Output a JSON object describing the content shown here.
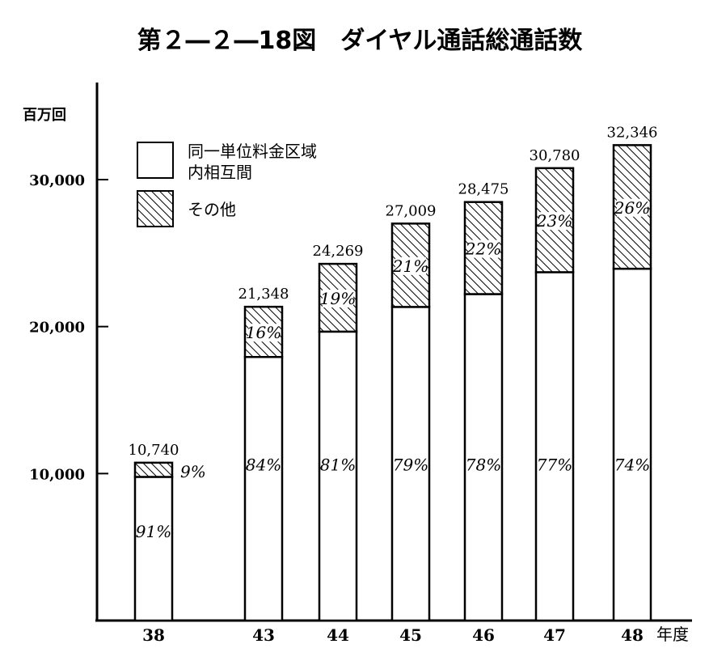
{
  "chart_data": {
    "type": "bar",
    "stacked": true,
    "title": "第２―２―18図　ダイヤル通話総通話数",
    "ylabel": "百万回",
    "xlabel": "年度",
    "ylim": [
      0,
      35000
    ],
    "yticks": [
      10000,
      20000,
      30000
    ],
    "ytick_labels": [
      "10,000",
      "20,000",
      "30,000"
    ],
    "categories": [
      "38",
      "43",
      "44",
      "45",
      "46",
      "47",
      "48"
    ],
    "totals": [
      10740,
      21348,
      24269,
      27009,
      28475,
      30780,
      32346
    ],
    "total_labels": [
      "10,740",
      "21,348",
      "24,269",
      "27,009",
      "28,475",
      "30,780",
      "32,346"
    ],
    "series": [
      {
        "name": "同一単位料金区域内相互間",
        "fill": "white",
        "percent_labels": [
          "91%",
          "84%",
          "81%",
          "79%",
          "78%",
          "77%",
          "74%"
        ],
        "values": [
          9773,
          17932,
          19658,
          21337,
          22211,
          23701,
          23936
        ]
      },
      {
        "name": "その他",
        "fill": "hatched",
        "percent_labels": [
          "9%",
          "16%",
          "19%",
          "21%",
          "22%",
          "23%",
          "26%"
        ],
        "values": [
          967,
          3416,
          4611,
          5672,
          6264,
          7079,
          8410
        ]
      }
    ],
    "legend": {
      "position": "top-left",
      "labels": [
        "同一単位料金区域",
        "内相互間",
        "その他"
      ]
    },
    "grid": false,
    "colors": {
      "line": "#000000",
      "background": "#ffffff"
    }
  }
}
